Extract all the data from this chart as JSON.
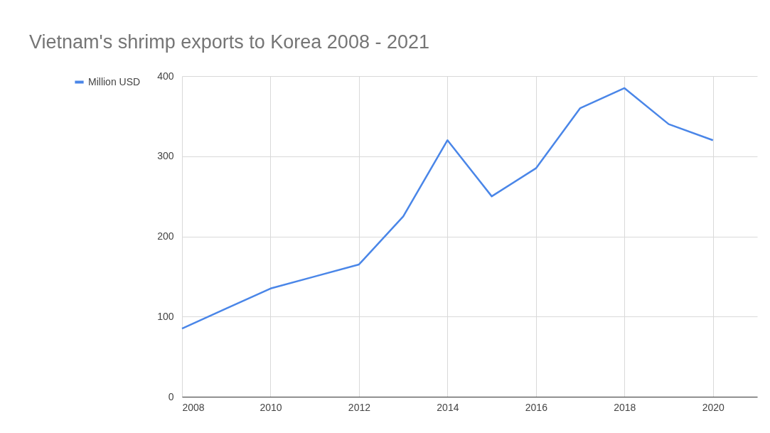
{
  "chart_data": {
    "type": "line",
    "title": "Vietnam's shrimp exports to Korea 2008 - 2021",
    "x": [
      2008,
      2009,
      2010,
      2011,
      2012,
      2013,
      2014,
      2015,
      2016,
      2017,
      2018,
      2019,
      2020
    ],
    "series": [
      {
        "name": "Million USD",
        "color": "#4a86e8",
        "values": [
          85,
          110,
          135,
          150,
          165,
          225,
          320,
          250,
          285,
          360,
          385,
          340,
          320
        ]
      }
    ],
    "xlim": [
      2008,
      2021
    ],
    "xticks": [
      2008,
      2010,
      2012,
      2014,
      2016,
      2018,
      2020
    ],
    "ylim": [
      0,
      400
    ],
    "yticks": [
      0,
      100,
      200,
      300,
      400
    ],
    "grid": true,
    "legend": "top left",
    "marker": "none",
    "line_style": "solid"
  }
}
